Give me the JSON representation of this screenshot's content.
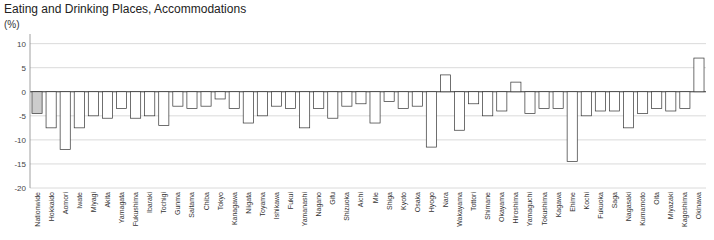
{
  "chart_data": {
    "type": "bar",
    "title": "Eating and Drinking Places, Accommodations",
    "ylabel": "(%)",
    "categories": [
      "Nationwide",
      "Hokkaido",
      "Aomori",
      "Iwate",
      "Miyagi",
      "Akita",
      "Yamagata",
      "Fukushima",
      "Ibaraki",
      "Tochigi",
      "Gunma",
      "Saitama",
      "Chiba",
      "Tokyo",
      "Kanagawa",
      "Niigata",
      "Toyama",
      "Ishikawa",
      "Fukui",
      "Yamanashi",
      "Nagano",
      "Gifu",
      "Shizuoka",
      "Aichi",
      "Mie",
      "Shiga",
      "Kyoto",
      "Osaka",
      "Hyogo",
      "Nara",
      "Wakayama",
      "Tottori",
      "Shimane",
      "Okayama",
      "Hiroshima",
      "Yamaguchi",
      "Tokushima",
      "Kagawa",
      "Ehime",
      "Kochi",
      "Fukuoka",
      "Saga",
      "Nagasaki",
      "Kumamoto",
      "Oita",
      "Miyazaki",
      "Kagoshima",
      "Okinawa"
    ],
    "values": [
      -4.5,
      -7.5,
      -12.0,
      -7.5,
      -5.0,
      -5.5,
      -3.5,
      -5.5,
      -5.0,
      -7.0,
      -3.0,
      -3.5,
      -3.0,
      -1.5,
      -3.5,
      -6.5,
      -5.0,
      -3.0,
      -3.5,
      -7.5,
      -3.5,
      -5.5,
      -3.0,
      -2.5,
      -6.5,
      -2.0,
      -3.5,
      -3.0,
      -11.5,
      3.5,
      -8.0,
      -2.5,
      -5.0,
      -4.0,
      2.0,
      -4.5,
      -3.5,
      -3.5,
      -14.5,
      -5.0,
      -4.0,
      -4.0,
      -7.5,
      -4.5,
      -3.5,
      -4.0,
      -3.5,
      7.0
    ],
    "colors": [
      "#cccccc",
      "#ffffff",
      "#ffffff",
      "#ffffff",
      "#ffffff",
      "#ffffff",
      "#ffffff",
      "#ffffff",
      "#ffffff",
      "#ffffff",
      "#ffffff",
      "#ffffff",
      "#ffffff",
      "#ffffff",
      "#ffffff",
      "#ffffff",
      "#ffffff",
      "#ffffff",
      "#ffffff",
      "#ffffff",
      "#ffffff",
      "#ffffff",
      "#ffffff",
      "#ffffff",
      "#ffffff",
      "#ffffff",
      "#ffffff",
      "#ffffff",
      "#ffffff",
      "#ffffff",
      "#ffffff",
      "#ffffff",
      "#ffffff",
      "#ffffff",
      "#ffffff",
      "#ffffff",
      "#ffffff",
      "#ffffff",
      "#ffffff",
      "#ffffff",
      "#ffffff",
      "#ffffff",
      "#ffffff",
      "#ffffff",
      "#ffffff",
      "#ffffff",
      "#ffffff",
      "#ffffff"
    ],
    "ylim": [
      -20,
      12
    ],
    "yticks": [
      -20,
      -15,
      -10,
      -5,
      0,
      5,
      10
    ],
    "grid": true
  }
}
